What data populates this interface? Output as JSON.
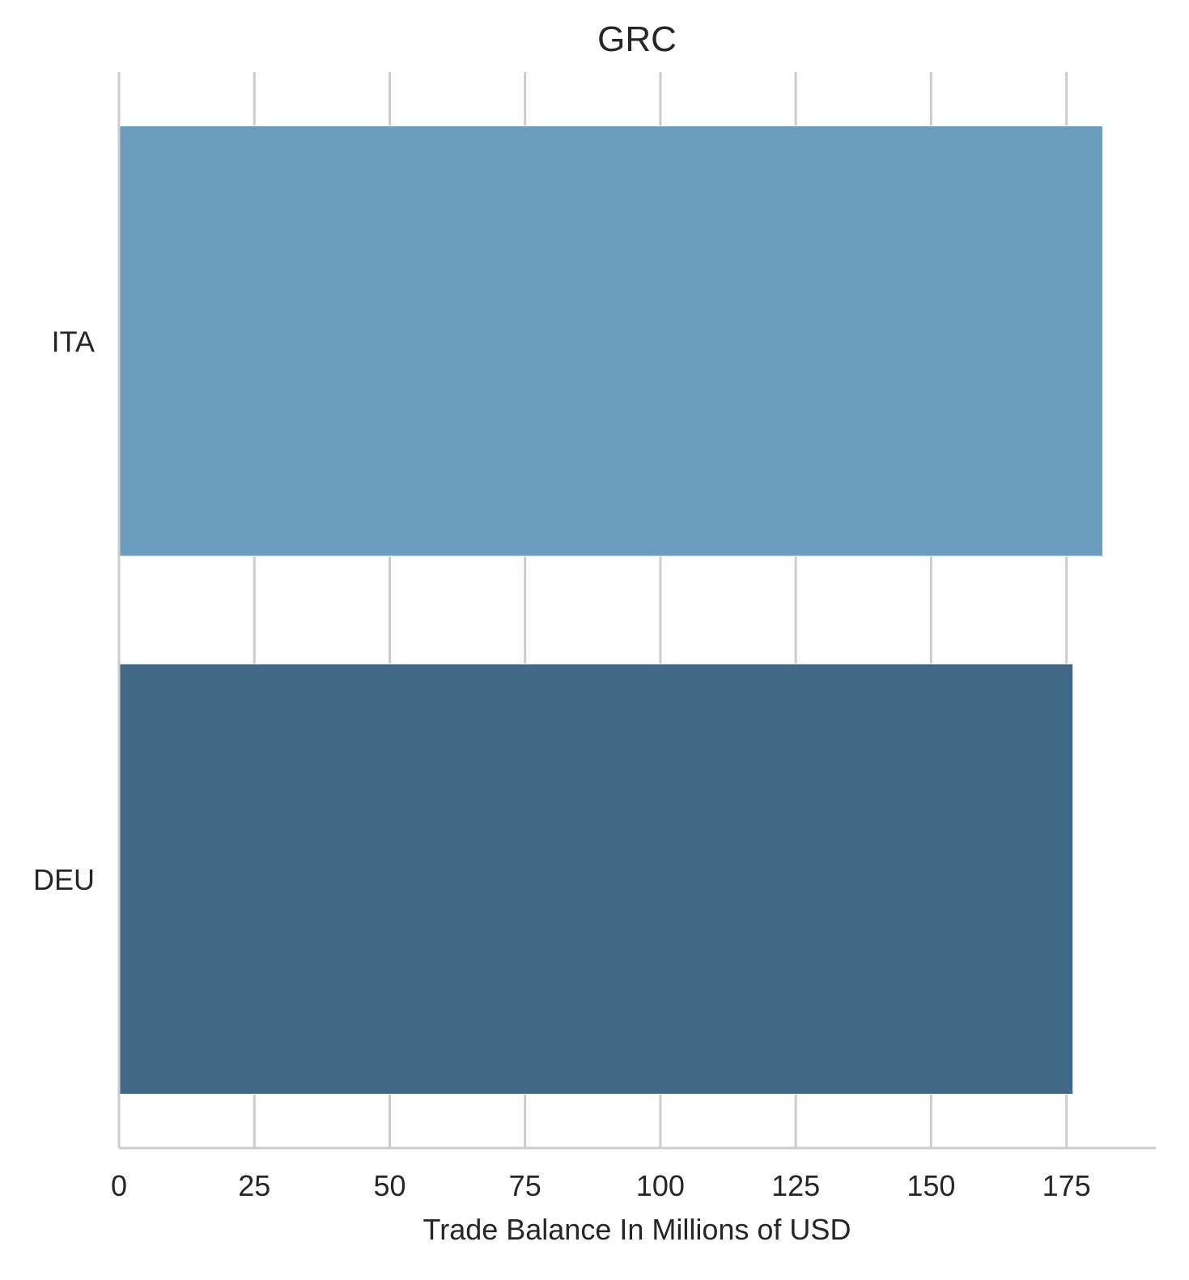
{
  "chart_data": {
    "type": "bar",
    "orientation": "horizontal",
    "title": "GRC",
    "xlabel": "Trade Balance In Millions of USD",
    "ylabel": "",
    "categories": [
      "ITA",
      "DEU"
    ],
    "values": [
      181.7,
      176.2
    ],
    "xlim": [
      0,
      191.5
    ],
    "xticks": [
      0,
      25,
      50,
      75,
      100,
      125,
      150,
      175
    ],
    "grid": "vertical",
    "colors": [
      "#6c9dbf",
      "#416985"
    ]
  }
}
